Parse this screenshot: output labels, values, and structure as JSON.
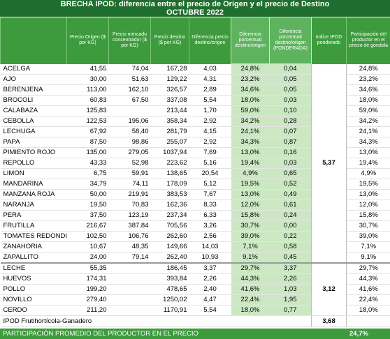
{
  "header": {
    "title": "BRECHA IPOD: diferencia entre el precio de Origen y el precio de Destino",
    "subtitle": "OCTUBRE 2022"
  },
  "table": {
    "columns": [
      "Precio Origen ($ por KG)",
      "Precio mercado concentrador ($ por KG)",
      "Precio destino ($ por KG)",
      "Diferencia precio destino/origen",
      "Diferencia porcentual destino/origen",
      "Diferencia porcentual destino/origen (PONDERADA)",
      "Indice IPOD ponderado",
      "Participación del productor en el precio de gondola"
    ],
    "groups": [
      {
        "ipod": "5,37",
        "rows": [
          [
            "ACELGA",
            "41,55",
            "74,04",
            "167,28",
            "4,03",
            "24,8%",
            "0,04",
            "24,8%"
          ],
          [
            "AJO",
            "30,00",
            "51,63",
            "129,22",
            "4,31",
            "23,2%",
            "0,05",
            "23,2%"
          ],
          [
            "BERENJENA",
            "113,00",
            "162,10",
            "326,57",
            "2,89",
            "34,6%",
            "0,05",
            "34,6%"
          ],
          [
            "BROCOLI",
            "60,83",
            "67,50",
            "337,08",
            "5,54",
            "18,0%",
            "0,03",
            "18,0%"
          ],
          [
            "CALABAZA",
            "125,83",
            null,
            "213,44",
            "1,70",
            "59,0%",
            "0,10",
            "59,0%"
          ],
          [
            "CEBOLLA",
            "122,53",
            "195,06",
            "358,34",
            "2,92",
            "34,2%",
            "0,28",
            "34,2%"
          ],
          [
            "LECHUGA",
            "67,92",
            "58,40",
            "281,79",
            "4,15",
            "24,1%",
            "0,07",
            "24,1%"
          ],
          [
            "PAPA",
            "87,50",
            "98,86",
            "255,07",
            "2,92",
            "34,3%",
            "0,87",
            "34,3%"
          ],
          [
            "PIMIENTO ROJO",
            "135,00",
            "279,05",
            "1037,94",
            "7,69",
            "13,0%",
            "0,16",
            "13,0%"
          ],
          [
            "REPOLLO",
            "43,33",
            "52,98",
            "223,62",
            "5,16",
            "19,4%",
            "0,03",
            "19,4%"
          ],
          [
            "LIMON",
            "6,75",
            "59,91",
            "138,65",
            "20,54",
            "4,9%",
            "0,65",
            "4,9%"
          ],
          [
            "MANDARINA",
            "34,79",
            "74,11",
            "178,09",
            "5,12",
            "19,5%",
            "0,52",
            "19,5%"
          ],
          [
            "MANZANA ROJA",
            "50,00",
            "219,91",
            "383,53",
            "7,67",
            "13,0%",
            "0,49",
            "13,0%"
          ],
          [
            "NARANJA",
            "19,50",
            "70,83",
            "162,36",
            "8,33",
            "12,0%",
            "0,61",
            "12,0%"
          ],
          [
            "PERA",
            "37,50",
            "123,19",
            "237,34",
            "6,33",
            "15,8%",
            "0,24",
            "15,8%"
          ],
          [
            "FRUTILLA",
            "216,67",
            "387,84",
            "705,56",
            "3,26",
            "30,7%",
            "0,00",
            "30,7%"
          ],
          [
            "TOMATES REDONDO",
            "102,50",
            "106,76",
            "262,60",
            "2,56",
            "39,0%",
            "0,22",
            "39,0%"
          ],
          [
            "ZANAHORIA",
            "10,67",
            "48,35",
            "149,66",
            "14,03",
            "7,1%",
            "0,58",
            "7,1%"
          ],
          [
            "ZAPALLITO",
            "24,00",
            "79,14",
            "262,40",
            "10,93",
            "9,1%",
            "0,45",
            "9,1%"
          ]
        ]
      },
      {
        "ipod": "3,12",
        "rows": [
          [
            "LECHE",
            "55,35",
            null,
            "186,45",
            "3,37",
            "29,7%",
            "3,37",
            "29,7%"
          ],
          [
            "HUEVOS",
            "174,31",
            null,
            "393,84",
            "2,26",
            "44,3%",
            "2,26",
            "44,3%"
          ],
          [
            "POLLO",
            "199,20",
            null,
            "478,65",
            "2,40",
            "41,6%",
            "1,03",
            "41,6%"
          ],
          [
            "NOVILLO",
            "279,40",
            null,
            "1250,02",
            "4,47",
            "22,4%",
            "1,95",
            "22,4%"
          ],
          [
            "CERDO",
            "211,20",
            null,
            "1170,91",
            "5,54",
            "18,0%",
            "0,77",
            "18,0%"
          ]
        ]
      }
    ],
    "total": {
      "label": "IPOD Frutihortícola-Ganadero",
      "value": "3,68"
    },
    "footer": {
      "label": "PARTICIPACIÓN PROMEDIO DEL PRODUCTOR EN EL PRECIO",
      "value": "24,7%"
    }
  }
}
